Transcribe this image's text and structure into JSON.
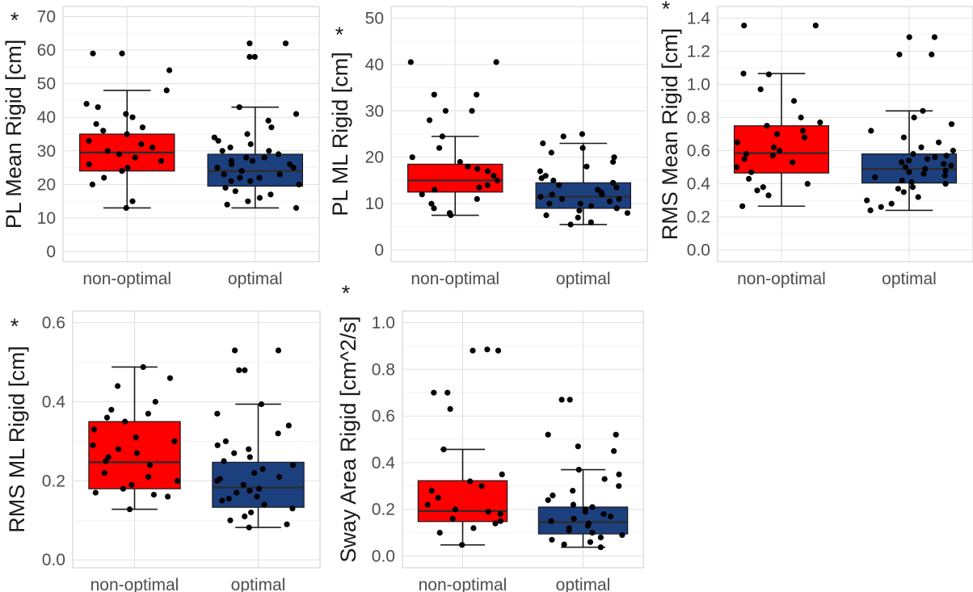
{
  "colors": {
    "non_optimal_fill": "#ff0000",
    "optimal_fill": "#1c3f7e",
    "point": "#000000",
    "grid": "#e0e0e0",
    "border": "#cccccc"
  },
  "chart_data": [
    {
      "type": "box",
      "ylabel": "PL Mean Rigid [cm]",
      "significance": "*",
      "categories": [
        "non-optimal",
        "optimal"
      ],
      "ylim": [
        -3,
        73
      ],
      "yticks": [
        0,
        10,
        20,
        30,
        40,
        50,
        60,
        70
      ],
      "tick_labels": [
        "0",
        "10",
        "20",
        "30",
        "40",
        "50",
        "60",
        "70"
      ],
      "grid": true,
      "boxes": [
        {
          "group": "non-optimal",
          "whisker_low": 13,
          "q1": 24,
          "median": 29.5,
          "q3": 35,
          "whisker_high": 48
        },
        {
          "group": "optimal",
          "whisker_low": 13,
          "q1": 19.5,
          "median": 24,
          "q3": 29,
          "whisker_high": 43
        }
      ],
      "points": [
        [
          13,
          15,
          20,
          22,
          24,
          25,
          26,
          27,
          28,
          29,
          30,
          31,
          32,
          33,
          35,
          36,
          37,
          38,
          40,
          41,
          43,
          44,
          48,
          54,
          59,
          59
        ],
        [
          13,
          14,
          15,
          16,
          17,
          18,
          19,
          20,
          21,
          21,
          22,
          22,
          23,
          23,
          24,
          24,
          25,
          25,
          26,
          26,
          27,
          27,
          28,
          28,
          29,
          30,
          30,
          31,
          32,
          33,
          34,
          35,
          37,
          39,
          41,
          43,
          58,
          58,
          62,
          62
        ]
      ]
    },
    {
      "type": "box",
      "ylabel": "PL ML Rigid [cm]",
      "significance": "*",
      "categories": [
        "non-optimal",
        "optimal"
      ],
      "ylim": [
        -2.5,
        52.5
      ],
      "yticks": [
        0,
        10,
        20,
        30,
        40,
        50
      ],
      "tick_labels": [
        "0",
        "10",
        "20",
        "30",
        "40",
        "50"
      ],
      "grid": true,
      "boxes": [
        {
          "group": "non-optimal",
          "whisker_low": 7.5,
          "q1": 12.5,
          "median": 15,
          "q3": 18.5,
          "whisker_high": 24.5
        },
        {
          "group": "optimal",
          "whisker_low": 5.5,
          "q1": 9,
          "median": 11.5,
          "q3": 14.5,
          "whisker_high": 23
        }
      ],
      "points": [
        [
          7.5,
          8,
          9,
          10,
          11,
          12,
          13,
          13.5,
          14,
          15,
          16,
          17,
          17.5,
          18,
          19,
          20,
          22,
          24.5,
          28,
          30,
          30,
          33.5,
          33.5,
          40.5,
          40.5
        ],
        [
          5.5,
          6,
          7,
          7.5,
          8,
          8.5,
          9,
          9.5,
          10,
          10,
          10.5,
          11,
          11,
          11.5,
          12,
          12,
          12.5,
          13,
          13.5,
          14,
          14.5,
          15,
          15.5,
          16,
          17,
          18,
          19,
          20,
          21,
          22,
          23,
          24.5,
          25
        ]
      ]
    },
    {
      "type": "box",
      "ylabel": "RMS Mean Rigid [cm]",
      "significance": "*",
      "categories": [
        "non-optimal",
        "optimal"
      ],
      "ylim": [
        -0.07,
        1.47
      ],
      "yticks": [
        0.0,
        0.2,
        0.4,
        0.6,
        0.8,
        1.0,
        1.2,
        1.4
      ],
      "tick_labels": [
        "0.0",
        "0.2",
        "0.4",
        "0.6",
        "0.8",
        "1.0",
        "1.2",
        "1.4"
      ],
      "grid": true,
      "boxes": [
        {
          "group": "non-optimal",
          "whisker_low": 0.265,
          "q1": 0.465,
          "median": 0.585,
          "q3": 0.75,
          "whisker_high": 1.065
        },
        {
          "group": "optimal",
          "whisker_low": 0.24,
          "q1": 0.405,
          "median": 0.49,
          "q3": 0.58,
          "whisker_high": 0.84
        }
      ],
      "points": [
        [
          0.265,
          0.33,
          0.36,
          0.38,
          0.4,
          0.43,
          0.47,
          0.5,
          0.53,
          0.55,
          0.57,
          0.58,
          0.6,
          0.62,
          0.65,
          0.68,
          0.7,
          0.72,
          0.75,
          0.77,
          0.8,
          0.9,
          0.97,
          1.06,
          1.065,
          1.355,
          1.355
        ],
        [
          0.24,
          0.26,
          0.28,
          0.3,
          0.32,
          0.35,
          0.37,
          0.38,
          0.4,
          0.41,
          0.42,
          0.44,
          0.45,
          0.46,
          0.47,
          0.48,
          0.49,
          0.5,
          0.51,
          0.52,
          0.53,
          0.54,
          0.55,
          0.56,
          0.57,
          0.58,
          0.6,
          0.62,
          0.65,
          0.68,
          0.72,
          0.76,
          0.8,
          0.84,
          1.18,
          1.18,
          1.285,
          1.285
        ]
      ]
    },
    {
      "type": "box",
      "ylabel": "RMS ML Rigid [cm]",
      "significance": "*",
      "categories": [
        "non-optimal",
        "optimal"
      ],
      "ylim": [
        -0.02,
        0.63
      ],
      "yticks": [
        0.0,
        0.2,
        0.4,
        0.6
      ],
      "minor_yticks": [
        0.1,
        0.3,
        0.5
      ],
      "tick_labels": [
        "0.0",
        "0.2",
        "0.4",
        "0.6"
      ],
      "grid": true,
      "boxes": [
        {
          "group": "non-optimal",
          "whisker_low": 0.128,
          "q1": 0.18,
          "median": 0.247,
          "q3": 0.35,
          "whisker_high": 0.488
        },
        {
          "group": "optimal",
          "whisker_low": 0.082,
          "q1": 0.133,
          "median": 0.183,
          "q3": 0.247,
          "whisker_high": 0.394
        }
      ],
      "points": [
        [
          0.128,
          0.16,
          0.165,
          0.17,
          0.18,
          0.19,
          0.2,
          0.21,
          0.22,
          0.24,
          0.25,
          0.26,
          0.27,
          0.28,
          0.29,
          0.3,
          0.31,
          0.33,
          0.35,
          0.36,
          0.37,
          0.38,
          0.4,
          0.44,
          0.46,
          0.488
        ],
        [
          0.082,
          0.09,
          0.1,
          0.11,
          0.12,
          0.13,
          0.14,
          0.15,
          0.155,
          0.16,
          0.17,
          0.175,
          0.18,
          0.19,
          0.2,
          0.205,
          0.21,
          0.22,
          0.23,
          0.24,
          0.25,
          0.26,
          0.27,
          0.28,
          0.29,
          0.3,
          0.32,
          0.34,
          0.37,
          0.394,
          0.48,
          0.48,
          0.53,
          0.53
        ]
      ]
    },
    {
      "type": "box",
      "ylabel": "Sway Area Rigid [cm^2/s]",
      "significance": "*",
      "categories": [
        "non-optimal",
        "optimal"
      ],
      "ylim": [
        -0.05,
        1.05
      ],
      "yticks": [
        0.0,
        0.2,
        0.4,
        0.6,
        0.8,
        1.0
      ],
      "tick_labels": [
        "0.0",
        "0.2",
        "0.4",
        "0.6",
        "0.8",
        "1.0"
      ],
      "grid": true,
      "boxes": [
        {
          "group": "non-optimal",
          "whisker_low": 0.048,
          "q1": 0.148,
          "median": 0.193,
          "q3": 0.323,
          "whisker_high": 0.457
        },
        {
          "group": "optimal",
          "whisker_low": 0.038,
          "q1": 0.095,
          "median": 0.145,
          "q3": 0.21,
          "whisker_high": 0.37
        }
      ],
      "points": [
        [
          0.048,
          0.1,
          0.12,
          0.14,
          0.15,
          0.16,
          0.18,
          0.19,
          0.2,
          0.22,
          0.25,
          0.28,
          0.3,
          0.32,
          0.35,
          0.457,
          0.63,
          0.7,
          0.7,
          0.88,
          0.88,
          0.885
        ],
        [
          0.038,
          0.05,
          0.06,
          0.07,
          0.08,
          0.09,
          0.1,
          0.11,
          0.12,
          0.13,
          0.14,
          0.15,
          0.16,
          0.17,
          0.18,
          0.19,
          0.2,
          0.21,
          0.22,
          0.24,
          0.26,
          0.28,
          0.3,
          0.33,
          0.35,
          0.37,
          0.45,
          0.47,
          0.52,
          0.52,
          0.67,
          0.67
        ]
      ]
    }
  ]
}
